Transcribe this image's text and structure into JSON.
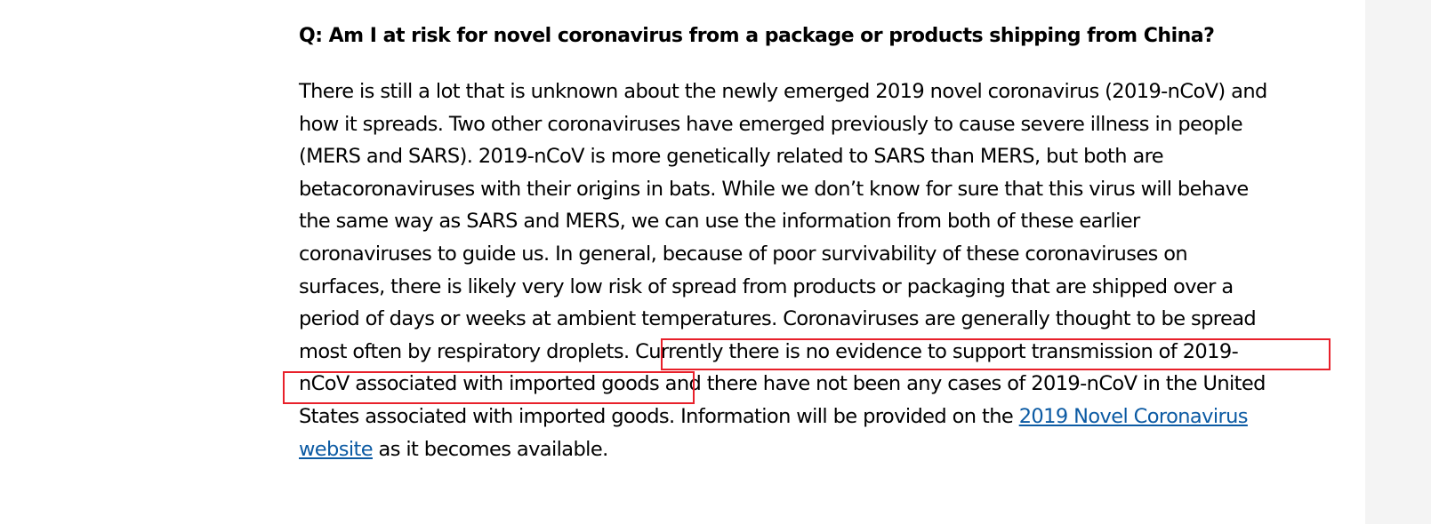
{
  "question": "Q: Am I at risk for novel coronavirus from a package or products shipping from China?",
  "answer_lines": [
    "There is still a lot that is unknown about the newly emerged 2019 novel coronavirus (2019-nCoV) and",
    "how it spreads. Two other coronaviruses have emerged previously to cause severe illness in people",
    "(MERS and SARS). 2019-nCoV is more genetically related to SARS than MERS, but both are",
    "betacoronaviruses with their origins in bats. While we don’t know for sure that this virus will behave",
    "the same way as SARS and MERS, we can use the information from both of these earlier",
    "coronaviruses to guide us. In general, because of poor survivability of these coronaviruses on",
    "surfaces, there is likely very low risk of spread from products or packaging that are shipped over a",
    "period of days or weeks at ambient temperatures. Coronaviruses are generally thought to be spread"
  ],
  "line9_a": "most often by respiratory droplets. ",
  "line9_b": "Currently there is no evidence to support transmission of 2019-",
  "line10_a": "nCoV associated with imported goods ",
  "line10_b": "and there have not been any cases of 2019-nCoV in the United",
  "line11_a": "States associated with imported goods. Information will be provided on the ",
  "link_part1": "2019 Novel Coronavirus",
  "link_part2": "website",
  "line12_b": " as it becomes available.",
  "colors": {
    "link": "#0b5aa3",
    "highlight_box": "#e8202a",
    "gutter": "#f4f4f4"
  }
}
